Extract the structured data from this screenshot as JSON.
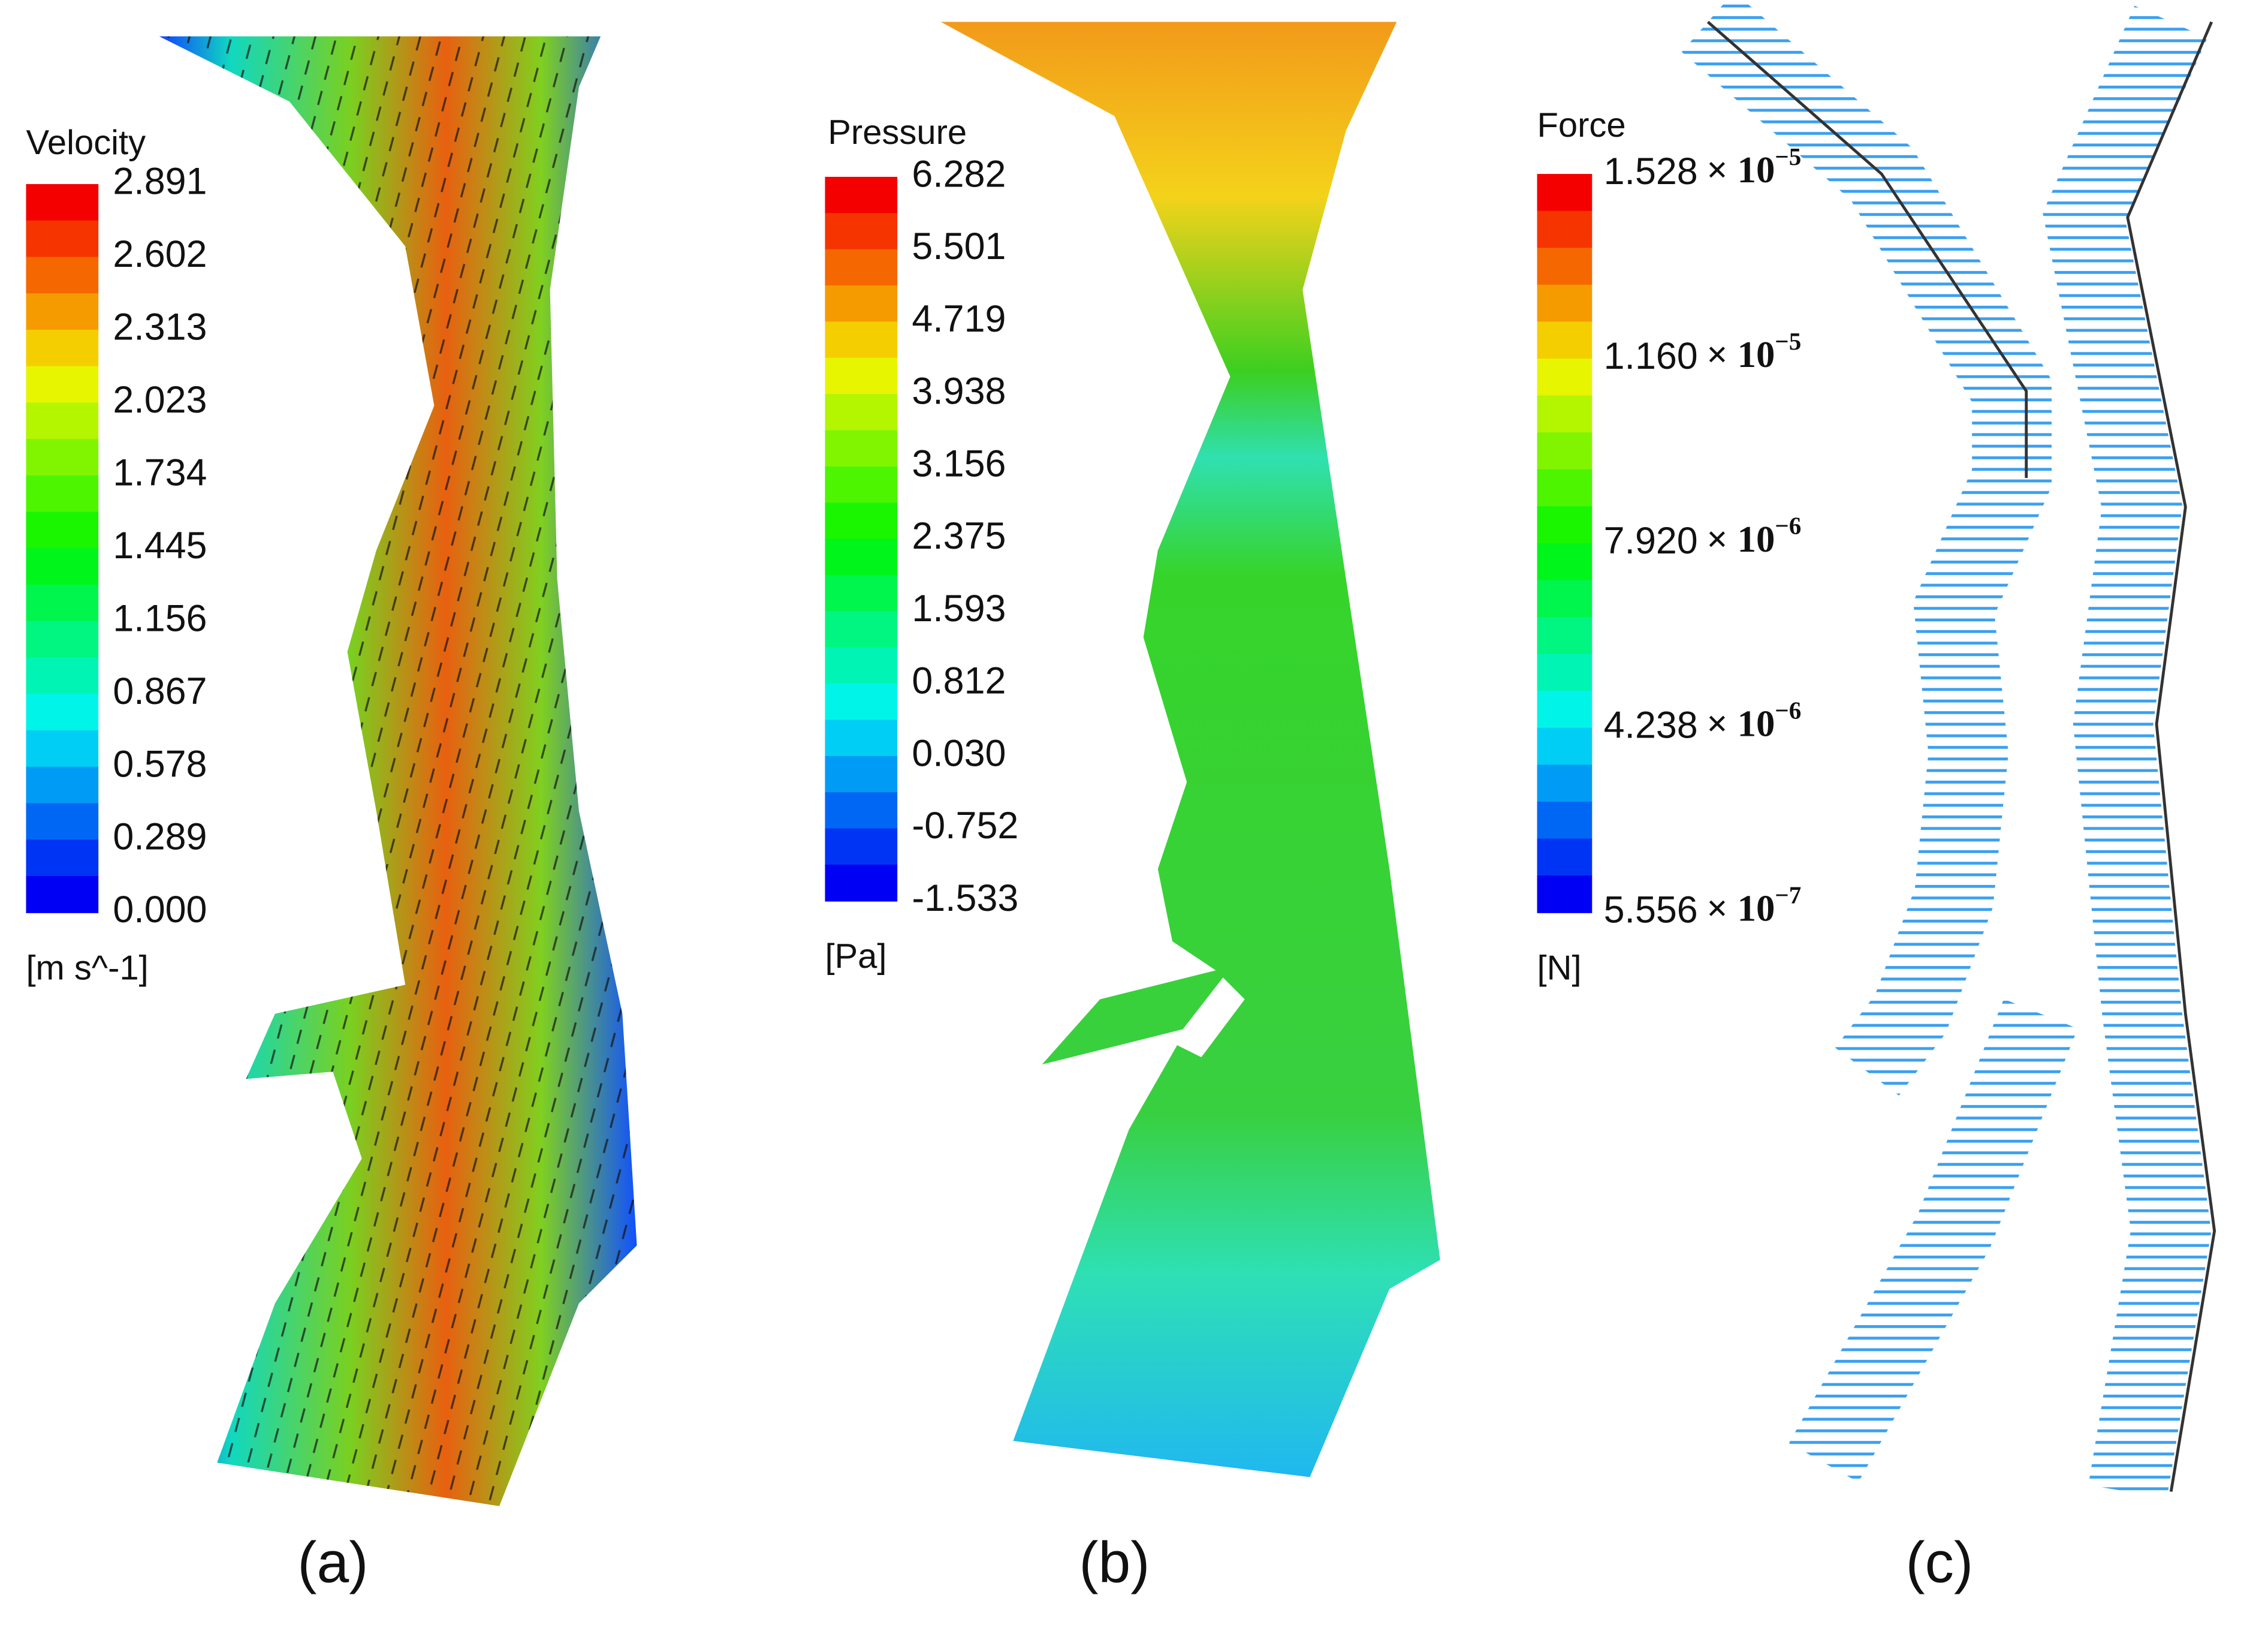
{
  "panels": [
    {
      "legend": {
        "title": "Velocity",
        "ticks": [
          "2.891",
          "2.602",
          "2.313",
          "2.023",
          "1.734",
          "1.445",
          "1.156",
          "0.867",
          "0.578",
          "0.289",
          "0.000"
        ],
        "unit": "[m s^-1]"
      },
      "caption": "(a)"
    },
    {
      "legend": {
        "title": "Pressure",
        "ticks": [
          "6.282",
          "5.501",
          "4.719",
          "3.938",
          "3.156",
          "2.375",
          "1.593",
          "0.812",
          "0.030",
          "-0.752",
          "-1.533"
        ],
        "unit": "[Pa]"
      },
      "caption": "(b)"
    },
    {
      "legend": {
        "title": "Force",
        "ticks": [
          {
            "mantissa": "1.528",
            "times": "× 10",
            "exponent": "−5"
          },
          {
            "mantissa": "1.160",
            "times": "× 10",
            "exponent": "−5"
          },
          {
            "mantissa": "7.920",
            "times": "× 10",
            "exponent": "−6"
          },
          {
            "mantissa": "4.238",
            "times": "× 10",
            "exponent": "−6"
          },
          {
            "mantissa": "5.556",
            "times": "× 10",
            "exponent": "−7"
          }
        ],
        "unit": "[N]"
      },
      "caption": "(c)"
    }
  ]
}
